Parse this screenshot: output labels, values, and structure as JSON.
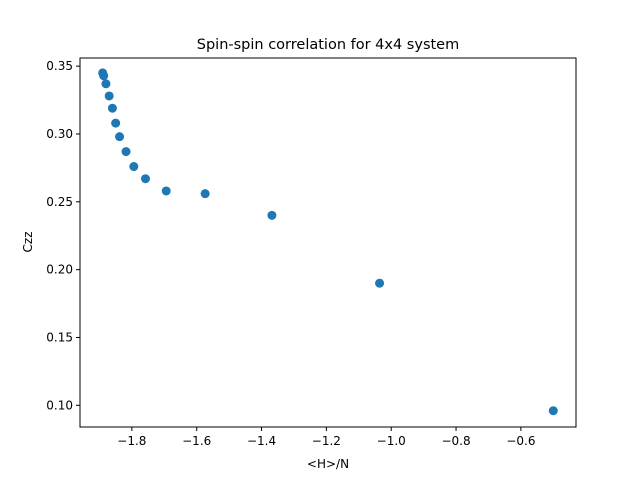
{
  "chart_data": {
    "type": "scatter",
    "title": "Spin-spin correlation for 4x4 system",
    "xlabel": "<H>/N",
    "ylabel": "Czz",
    "xlim": [
      -1.96,
      -0.43
    ],
    "ylim": [
      0.084,
      0.356
    ],
    "x_ticks": [
      -1.8,
      -1.6,
      -1.4,
      -1.2,
      -1.0,
      -0.8,
      -0.6
    ],
    "x_tick_labels": [
      "−1.8",
      "−1.6",
      "−1.4",
      "−1.2",
      "−1.0",
      "−0.8",
      "−0.6"
    ],
    "y_ticks": [
      0.1,
      0.15,
      0.2,
      0.25,
      0.3,
      0.35
    ],
    "y_tick_labels": [
      "0.10",
      "0.15",
      "0.20",
      "0.25",
      "0.30",
      "0.35"
    ],
    "grid": false,
    "marker_color": "#1f77b4",
    "points": [
      {
        "x": -1.89,
        "y": 0.345
      },
      {
        "x": -1.887,
        "y": 0.343
      },
      {
        "x": -1.88,
        "y": 0.337
      },
      {
        "x": -1.87,
        "y": 0.328
      },
      {
        "x": -1.86,
        "y": 0.319
      },
      {
        "x": -1.85,
        "y": 0.308
      },
      {
        "x": -1.838,
        "y": 0.298
      },
      {
        "x": -1.818,
        "y": 0.287
      },
      {
        "x": -1.794,
        "y": 0.276
      },
      {
        "x": -1.758,
        "y": 0.267
      },
      {
        "x": -1.694,
        "y": 0.258
      },
      {
        "x": -1.574,
        "y": 0.256
      },
      {
        "x": -1.368,
        "y": 0.24
      },
      {
        "x": -1.036,
        "y": 0.19
      },
      {
        "x": -0.5,
        "y": 0.096
      }
    ]
  }
}
